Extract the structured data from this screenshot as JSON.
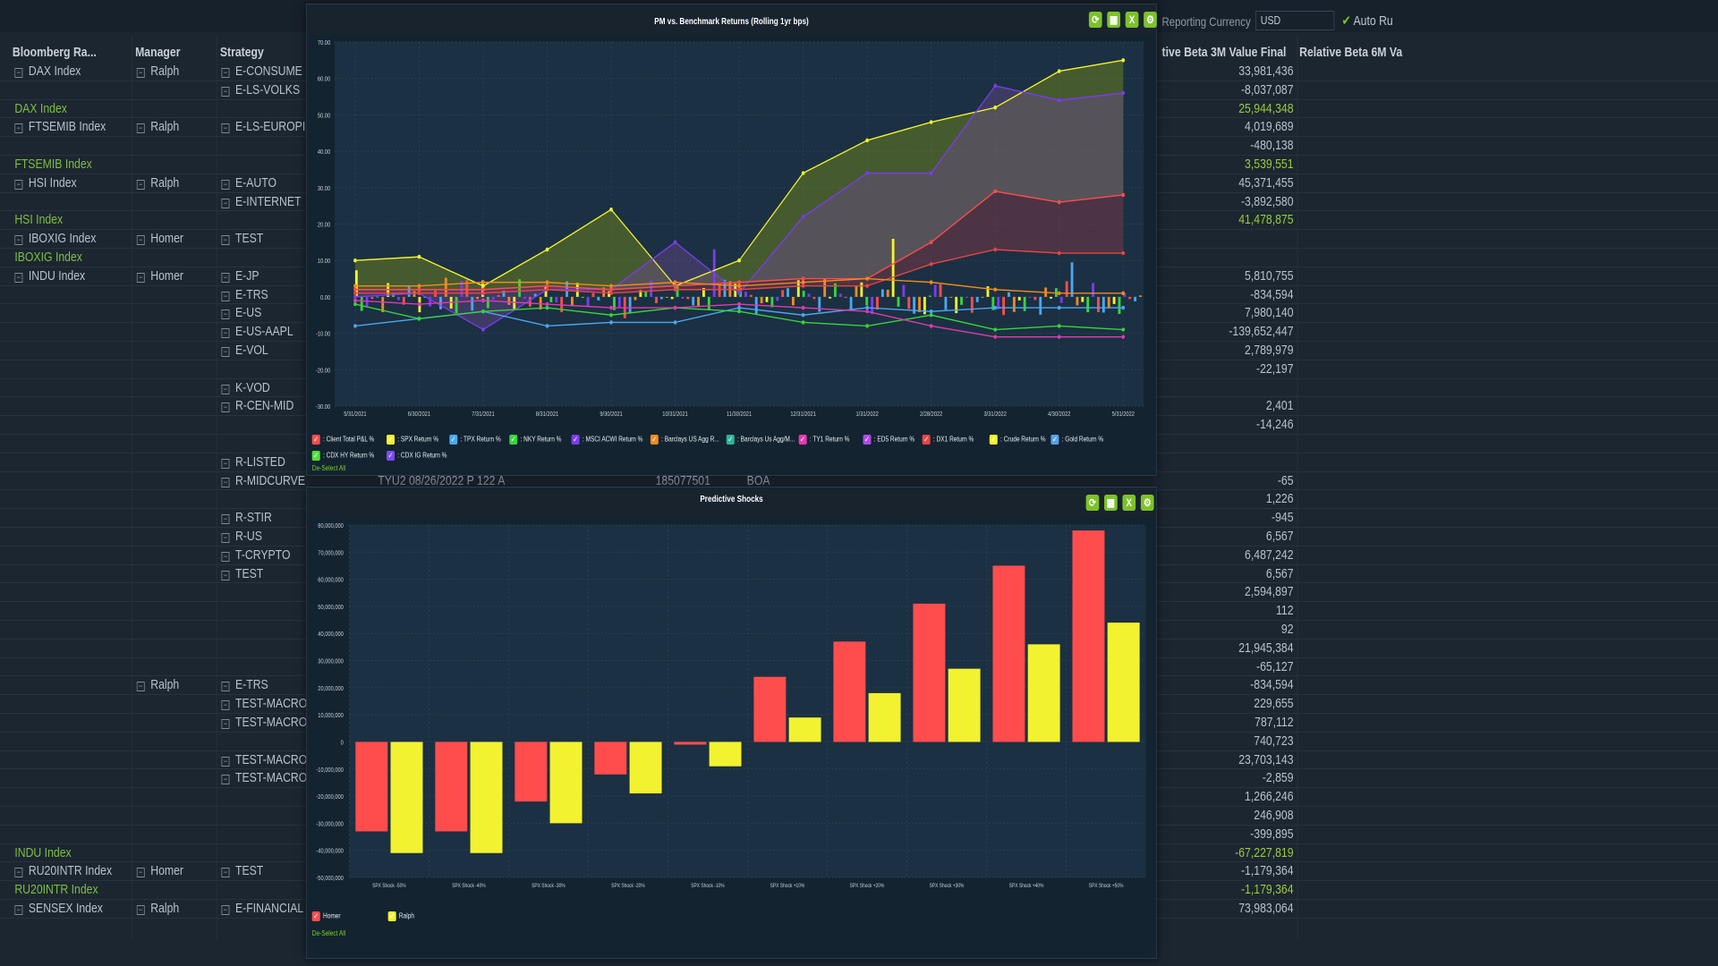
{
  "grid": {
    "headers": {
      "bbg": "Bloomberg Ra...",
      "manager": "Manager",
      "strategy": "Strategy",
      "rb3m": "tive Beta 3M Value Final",
      "rb6m": "Relative Beta 6M Va"
    },
    "reporting_currency_label": "Reporting Currency",
    "reporting_currency_value": "USD",
    "auto_label": "Auto Ru",
    "rows": [
      {
        "bbg": "DAX Index",
        "mgr": "Ralph",
        "strat": "E-CONSUME",
        "val": "33,981,436"
      },
      {
        "strat": "E-LS-VOLKS",
        "val": "-8,037,087"
      },
      {
        "total": "DAX Index",
        "val": "25,944,348",
        "isTotal": true
      },
      {
        "bbg": "FTSEMIB Index",
        "mgr": "Ralph",
        "strat": "E-LS-EUROPI",
        "val": "4,019,689"
      },
      {
        "val": "-480,138"
      },
      {
        "total": "FTSEMIB Index",
        "val": "3,539,551",
        "isTotal": true
      },
      {
        "bbg": "HSI Index",
        "mgr": "Ralph",
        "strat": "E-AUTO",
        "val": "45,371,455"
      },
      {
        "strat": "E-INTERNET",
        "val": "-3,892,580"
      },
      {
        "total": "HSI Index",
        "val": "41,478,875",
        "isTotal": true
      },
      {
        "bbg": "IBOXIG Index",
        "mgr": "Homer",
        "strat": "TEST",
        "val": ""
      },
      {
        "total": "IBOXIG Index",
        "val": "",
        "isTotal": true
      },
      {
        "bbg": "INDU Index",
        "mgr": "Homer",
        "strat": "E-JP",
        "val": "5,810,755"
      },
      {
        "strat": "E-TRS",
        "val": "-834,594"
      },
      {
        "strat": "E-US",
        "val": "7,980,140"
      },
      {
        "strat": "E-US-AAPL",
        "val": "-139,652,447"
      },
      {
        "strat": "E-VOL",
        "val": "2,789,979"
      },
      {
        "val": "-22,197"
      },
      {
        "strat": "K-VOD",
        "val": ""
      },
      {
        "strat": "R-CEN-MID",
        "val": "2,401"
      },
      {
        "val": "-14,246"
      },
      {
        "val": ""
      },
      {
        "strat": "R-LISTED",
        "val": ""
      },
      {
        "strat": "R-MIDCURVE",
        "val": "-65"
      },
      {
        "val": "1,226"
      },
      {
        "strat": "R-STIR",
        "val": "-945"
      },
      {
        "strat": "R-US",
        "val": "6,567"
      },
      {
        "strat": "T-CRYPTO",
        "val": "6,487,242"
      },
      {
        "strat": "TEST",
        "val": "6,567"
      },
      {
        "val": "2,594,897"
      },
      {
        "val": "112"
      },
      {
        "val": "92"
      },
      {
        "val": "21,945,384"
      },
      {
        "val": "-65,127"
      },
      {
        "mgr": "Ralph",
        "strat": "E-TRS",
        "val": "-834,594"
      },
      {
        "strat": "TEST-MACRO",
        "val": "229,655"
      },
      {
        "strat": "TEST-MACRO",
        "val": "787,112"
      },
      {
        "val": "740,723"
      },
      {
        "strat": "TEST-MACRO",
        "val": "23,703,143"
      },
      {
        "strat": "TEST-MACRO",
        "val": "-2,859"
      },
      {
        "val": "1,266,246"
      },
      {
        "val": "246,908"
      },
      {
        "val": "-399,895"
      },
      {
        "total": "INDU Index",
        "val": "-67,227,819",
        "isTotal": true
      },
      {
        "bbg": "RU20INTR Index",
        "mgr": "Homer",
        "strat": "TEST",
        "val": "-1,179,364"
      },
      {
        "total": "RU20INTR Index",
        "val": "-1,179,364",
        "isTotal": true
      },
      {
        "bbg": "SENSEX Index",
        "mgr": "Ralph",
        "strat": "E-FINANCIAL",
        "val": "73,983,064"
      }
    ],
    "peek_row": {
      "a": "TYU2 08/26/2022 P 122 A",
      "b": "185077501",
      "c": "BOA"
    }
  },
  "line_panel": {
    "title": "PM vs. Benchmark Returns (Rolling 1yr bps)",
    "deselect": "De-Select All",
    "legend": [
      {
        "name": ": Client Total P&L %",
        "color": "#ff4d4d"
      },
      {
        "name": ": SPX Return %",
        "color": "#f2f230"
      },
      {
        "name": ": TPX Return %",
        "color": "#4aa8f0"
      },
      {
        "name": ": NKY Return %",
        "color": "#39d33d"
      },
      {
        "name": ": MSCI ACWI Return %",
        "color": "#7a3cf0"
      },
      {
        "name": ": Barclays US Agg R...",
        "color": "#f08a20"
      },
      {
        "name": ": Barclays Us Agg/M...",
        "color": "#2bb59a"
      },
      {
        "name": ": TY1 Return %",
        "color": "#e03ab0"
      },
      {
        "name": ": ED5 Return %",
        "color": "#b04ae8"
      },
      {
        "name": ": DX1 Return %",
        "color": "#e84444"
      },
      {
        "name": ": Crude Return %",
        "color": "#f2f230"
      },
      {
        "name": ": Gold Return %",
        "color": "#5aa0e6"
      },
      {
        "name": ": CDX HY Return %",
        "color": "#50e03a"
      },
      {
        "name": ": CDX IG Return %",
        "color": "#7a4cf0"
      }
    ]
  },
  "chart_data": [
    {
      "type": "line",
      "title": "PM vs. Benchmark Returns (Rolling 1yr bps)",
      "x": [
        "5/31/2021",
        "6/30/2021",
        "7/31/2021",
        "8/31/2021",
        "9/30/2021",
        "10/31/2021",
        "11/30/2021",
        "12/31/2021",
        "1/31/2022",
        "2/28/2022",
        "3/31/2022",
        "4/30/2022",
        "5/31/2022"
      ],
      "ylim": [
        -30,
        70
      ],
      "yticks": [
        "70.00",
        "60.00",
        "50.00",
        "40.00",
        "30.00",
        "20.00",
        "10.00",
        "0.00",
        "-10.00",
        "-20.00",
        "-30.00"
      ],
      "series": [
        {
          "name": "SPX Return %",
          "color": "#f2f230",
          "values": [
            10,
            11,
            3,
            13,
            24,
            3,
            10,
            34,
            43,
            48,
            52,
            62,
            65
          ]
        },
        {
          "name": "MSCI ACWI Return %",
          "color": "#7a3cf0",
          "values": [
            0,
            1,
            -9,
            2,
            2,
            15,
            1,
            22,
            34,
            34,
            58,
            54,
            56
          ]
        },
        {
          "name": "Client Total P&L %",
          "color": "#ff4d4d",
          "values": [
            2,
            2,
            2,
            3,
            2,
            3,
            4,
            5,
            5,
            15,
            29,
            26,
            28
          ]
        },
        {
          "name": "DX1 Return %",
          "color": "#e84444",
          "values": [
            1,
            1,
            1,
            2,
            1,
            2,
            2,
            3,
            3,
            9,
            13,
            12,
            12
          ]
        },
        {
          "name": "Barclays US Agg R...",
          "color": "#f08a20",
          "values": [
            3,
            3,
            4,
            4,
            3,
            4,
            3,
            4,
            5,
            4,
            2,
            1,
            1
          ]
        },
        {
          "name": "TPX Return %",
          "color": "#4aa8f0",
          "values": [
            -8,
            -6,
            -4,
            -8,
            -7,
            -7,
            -3,
            -5,
            -3,
            -4,
            -3,
            -3,
            -3
          ]
        },
        {
          "name": "NKY Return %",
          "color": "#39d33d",
          "values": [
            -2,
            -6,
            -4,
            -3,
            -5,
            -3,
            -4,
            -7,
            -8,
            -5,
            -9,
            -8,
            -9
          ]
        },
        {
          "name": "TY1 Return %",
          "color": "#e03ab0",
          "values": [
            -1,
            -2,
            -1,
            -2,
            -3,
            -3,
            -2,
            -3,
            -4,
            -8,
            -11,
            -11,
            -11
          ]
        }
      ]
    },
    {
      "type": "bar",
      "title": "Predictive Shocks",
      "categories": [
        "SPX Shock -50%",
        "SPX Shock -40%",
        "SPX Shock -30%",
        "SPX Shock -20%",
        "SPX Shock -10%",
        "SPX Shock +10%",
        "SPX Shock +20%",
        "SPX Shock +30%",
        "SPX Shock +40%",
        "SPX Shock +50%"
      ],
      "ylim": [
        -50000000,
        80000000
      ],
      "yticks": [
        "80,000,000",
        "70,000,000",
        "60,000,000",
        "50,000,000",
        "40,000,000",
        "30,000,000",
        "20,000,000",
        "10,000,000",
        "0",
        "-10,000,000",
        "-20,000,000",
        "-30,000,000",
        "-40,000,000",
        "-50,000,000"
      ],
      "series": [
        {
          "name": "Homer",
          "color": "#ff4d4d",
          "values": [
            -33000000,
            -33000000,
            -22000000,
            -12000000,
            -1000000,
            24000000,
            37000000,
            51000000,
            65000000,
            78000000
          ]
        },
        {
          "name": "Ralph",
          "color": "#f2f230",
          "values": [
            -41000000,
            -41000000,
            -30000000,
            -19000000,
            -9000000,
            9000000,
            18000000,
            27000000,
            36000000,
            44000000
          ]
        }
      ]
    }
  ],
  "bar_panel": {
    "title": "Predictive Shocks",
    "deselect": "De-Select All"
  }
}
